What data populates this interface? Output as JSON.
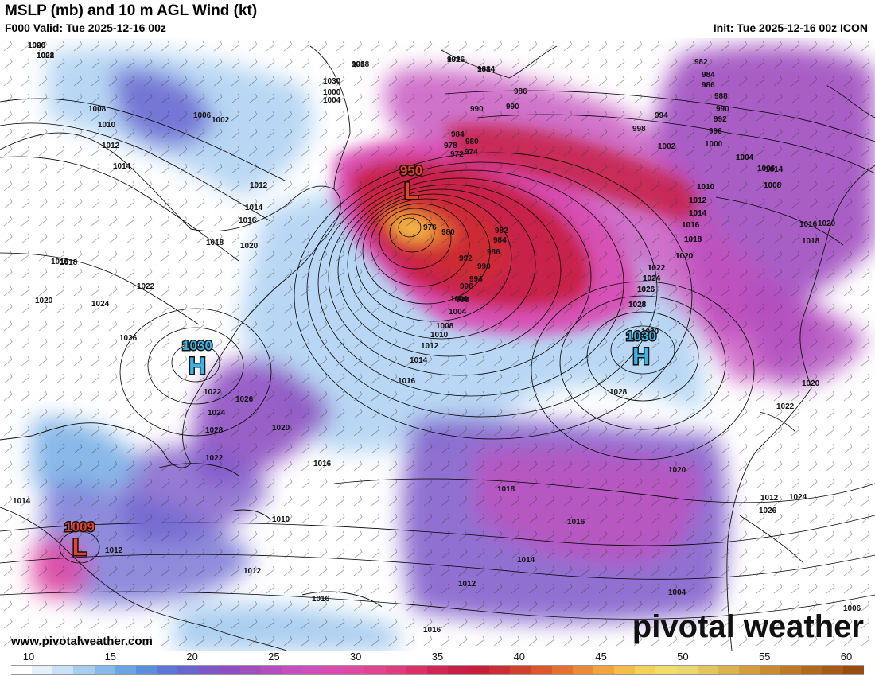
{
  "header": {
    "title": "MSLP (mb) and 10 m AGL Wind (kt)",
    "valid": "F000 Valid: Tue 2025-12-16 00z",
    "init": "Init: Tue 2025-12-16 00z ICON"
  },
  "centers": [
    {
      "type": "L",
      "value": "950",
      "color": "#e8412a"
    },
    {
      "type": "H",
      "value": "1030",
      "color": "#3cb4e6"
    },
    {
      "type": "H",
      "value": "1030",
      "color": "#3cb4e6"
    },
    {
      "type": "L",
      "value": "1009",
      "color": "#e8412a"
    }
  ],
  "isobar_labels": [
    "1006",
    "1008",
    "998",
    "992",
    "988",
    "986",
    "982",
    "984",
    "986",
    "988",
    "990",
    "992",
    "996",
    "1000",
    "1004",
    "1006",
    "1008",
    "1010",
    "1012",
    "1014",
    "1016",
    "1018",
    "1020",
    "1022",
    "1024",
    "1026",
    "1028",
    "1030",
    "1000",
    "1004",
    "1006",
    "1008",
    "1010",
    "1012",
    "1014",
    "1016",
    "1018",
    "1020",
    "1022",
    "1024",
    "1026",
    "1002",
    "990",
    "990",
    "994",
    "998",
    "1002",
    "1004",
    "1006",
    "1008",
    "1010",
    "1012",
    "1014",
    "1016",
    "1018",
    "1020",
    "1022",
    "1024",
    "1026",
    "1028",
    "1012",
    "1014",
    "1016",
    "1018",
    "1020",
    "1016",
    "1018",
    "1020",
    "1022",
    "1024",
    "1026",
    "1028",
    "1030",
    "984",
    "980",
    "978",
    "974",
    "972",
    "976",
    "980",
    "982",
    "984",
    "986",
    "990",
    "992",
    "994",
    "996",
    "998",
    "1000",
    "1004",
    "1008",
    "1010",
    "1012",
    "1014",
    "1016",
    "1016",
    "1020",
    "1022",
    "1024",
    "1026",
    "1028",
    "1022",
    "1020",
    "1018",
    "1016",
    "1014",
    "1012",
    "1016",
    "1014",
    "1012",
    "1010",
    "1012",
    "1016",
    "1020",
    "1014",
    "1012",
    "1004",
    "1006",
    "1020",
    "1022",
    "1018",
    "1016",
    "1014"
  ],
  "legend": {
    "ticks": [
      "10",
      "15",
      "20",
      "25",
      "30",
      "35",
      "40",
      "45",
      "50",
      "55",
      "60"
    ],
    "colors": [
      "#ffffff",
      "#e6f0fb",
      "#c9e0f7",
      "#a7cdf1",
      "#86b9ea",
      "#6aa6e3",
      "#5b8fdc",
      "#5c78d6",
      "#6a66d0",
      "#7c58c9",
      "#8e4fc2",
      "#a04ec0",
      "#b24fbf",
      "#c44fbd",
      "#cf4fba",
      "#d84cb2",
      "#de49a4",
      "#e04592",
      "#df3d7d",
      "#d93168",
      "#cf2655",
      "#c71f47",
      "#c71f3a",
      "#cd2d33",
      "#d4402f",
      "#dc5730",
      "#e47032",
      "#eb8a37",
      "#f0a43d",
      "#f3bd48",
      "#f4d258",
      "#f2dd6b",
      "#ecd872",
      "#e4c660",
      "#dcb24d",
      "#d39e3e",
      "#c98b31",
      "#be7926",
      "#b2681d",
      "#a65a16",
      "#9a4c10"
    ],
    "unit": ""
  },
  "map_colors": {
    "land": "#ffffff",
    "ocean_calm": "#ffffff",
    "light_blue": "#a7cdf1",
    "mid_blue": "#6aa6e3",
    "purple": "#7c58c9",
    "magenta": "#c44fbd",
    "crimson": "#c71f47",
    "orange": "#e47032",
    "yellow": "#f3bd48"
  },
  "credit": "www.pivotalweather.com",
  "logo": "pivotal weather"
}
